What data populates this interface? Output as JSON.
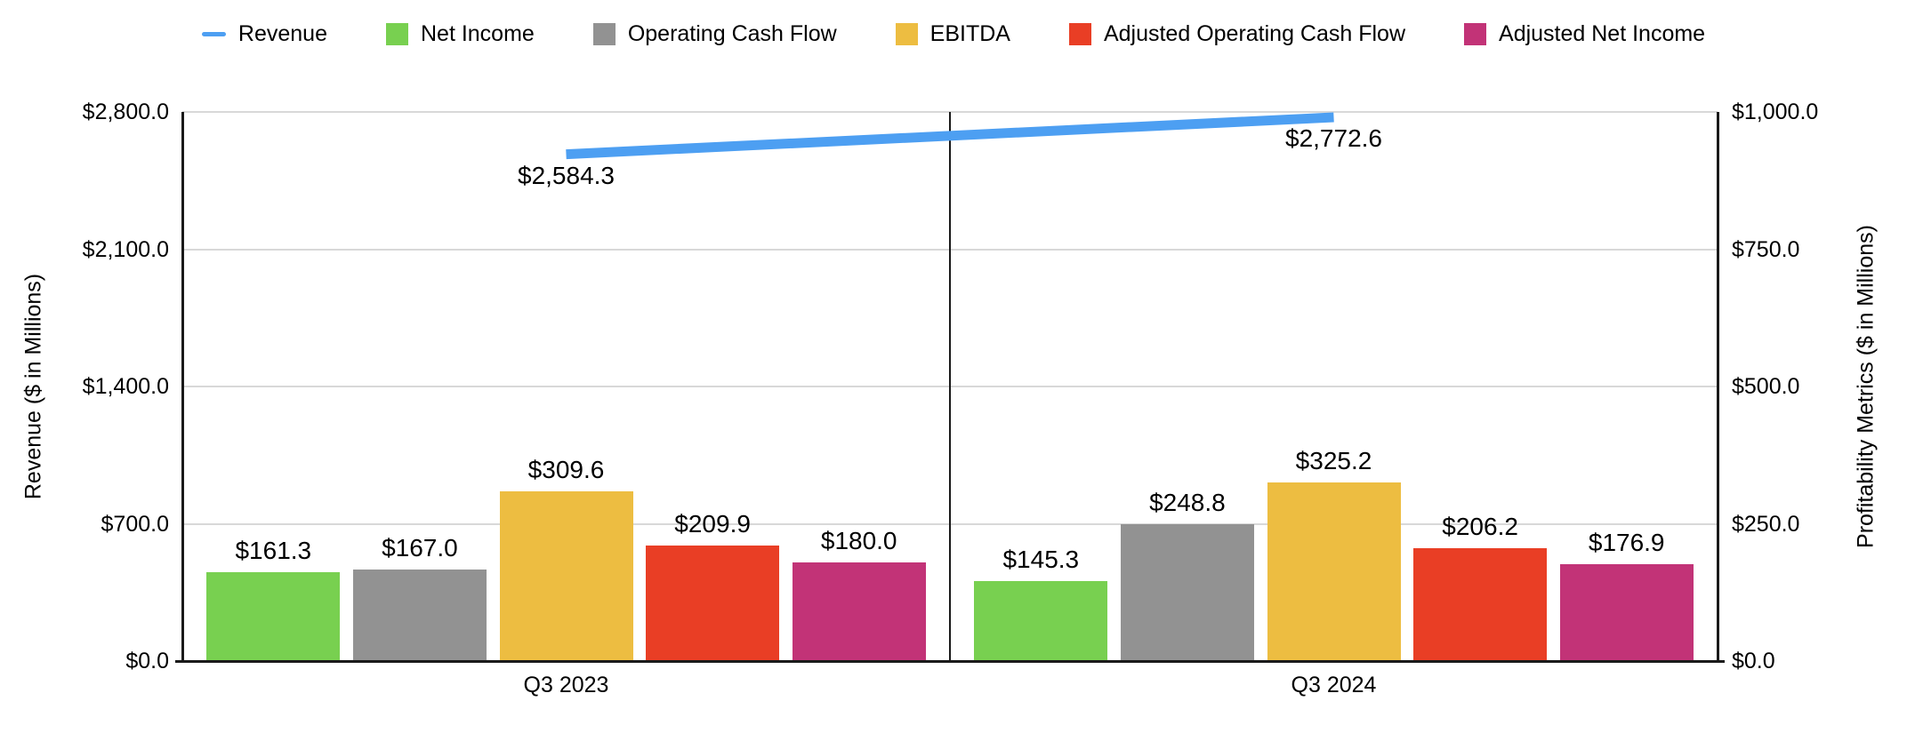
{
  "chart_data": {
    "type": "combo-bar-line",
    "categories": [
      "Q3 2023",
      "Q3 2024"
    ],
    "left_axis": {
      "title": "Revenue ($ in Millions)",
      "max": 2800,
      "ticks": [
        {
          "v": 0,
          "label": "$0.0"
        },
        {
          "v": 700,
          "label": "$700.0"
        },
        {
          "v": 1400,
          "label": "$1,400.0"
        },
        {
          "v": 2100,
          "label": "$2,100.0"
        },
        {
          "v": 2800,
          "label": "$2,800.0"
        }
      ]
    },
    "right_axis": {
      "title": "Profitability Metrics ($ in Millions)",
      "max": 1000,
      "ticks": [
        {
          "v": 0,
          "label": "$0.0"
        },
        {
          "v": 250,
          "label": "$250.0"
        },
        {
          "v": 500,
          "label": "$500.0"
        },
        {
          "v": 750,
          "label": "$750.0"
        },
        {
          "v": 1000,
          "label": "$1,000.0"
        }
      ]
    },
    "line_series": {
      "name": "Revenue",
      "color": "#4D9FF2",
      "axis": "left",
      "values": [
        2584.3,
        2772.6
      ],
      "labels": [
        "$2,584.3",
        "$2,772.6"
      ]
    },
    "bar_series": [
      {
        "name": "Net Income",
        "color": "#78D050",
        "values": [
          161.3,
          145.3
        ],
        "labels": [
          "$161.3",
          "$145.3"
        ]
      },
      {
        "name": "Operating Cash Flow",
        "color": "#929292",
        "values": [
          167.0,
          248.8
        ],
        "labels": [
          "$167.0",
          "$248.8"
        ]
      },
      {
        "name": "EBITDA",
        "color": "#EDBD41",
        "values": [
          309.6,
          325.2
        ],
        "labels": [
          "$309.6",
          "$325.2"
        ]
      },
      {
        "name": "Adjusted Operating Cash Flow",
        "color": "#E93E25",
        "values": [
          209.9,
          206.2
        ],
        "labels": [
          "$209.9",
          "$206.2"
        ]
      },
      {
        "name": "Adjusted Net Income",
        "color": "#C23377",
        "values": [
          180.0,
          176.9
        ],
        "labels": [
          "$180.0",
          "$176.9"
        ]
      }
    ],
    "grid": true,
    "legend_position": "top",
    "gridline_color": "#D8D8D8",
    "axis_line_color": "#1A1A1A"
  }
}
